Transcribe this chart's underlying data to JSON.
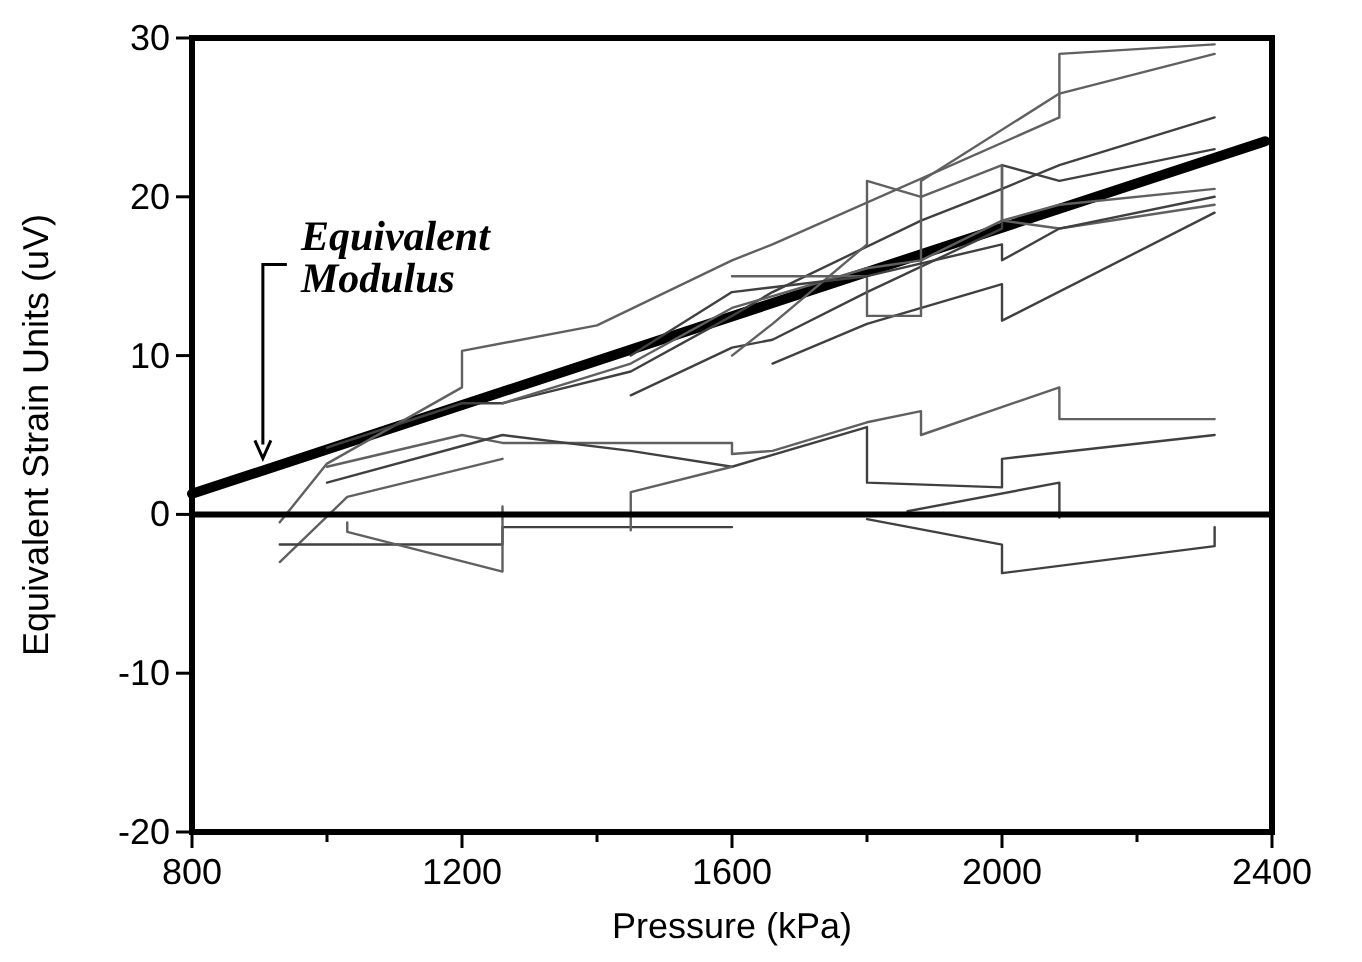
{
  "chart_data": {
    "type": "line",
    "xlabel": "Pressure (kPa)",
    "ylabel": "Equivalent Strain Units (uV)",
    "xlim": [
      800,
      2400
    ],
    "ylim": [
      -20,
      30
    ],
    "xticks": [
      800,
      {
        "value": 1000,
        "label": null
      },
      1200,
      {
        "value": 1400,
        "label": null
      },
      1600,
      {
        "value": 1800,
        "label": null
      },
      2000,
      {
        "value": 2200,
        "label": null
      },
      2400
    ],
    "yticks": [
      -20,
      -10,
      0,
      10,
      20,
      30
    ],
    "grid": false,
    "marker": "none",
    "line_style": "solid",
    "ref_lines": [
      {
        "axis": "y",
        "value": 0,
        "color": "#000000"
      }
    ],
    "annotations": [
      {
        "text": "Equivalent Modulus",
        "x": 905,
        "y": 3.4
      }
    ],
    "series": [
      {
        "color": "#000000",
        "x": [
          800,
          2390
        ],
        "values": [
          1.3,
          23.5
        ]
      },
      {
        "color": "#606060",
        "x": [
          930,
          1000,
          1200,
          1200,
          1400,
          1600,
          1660,
          2085,
          2085,
          2315
        ],
        "values": [
          -0.5,
          3.2,
          8,
          10.3,
          11.9,
          16,
          17,
          25,
          29,
          29.6
        ]
      },
      {
        "color": "#404040",
        "x": [
          1000,
          1200,
          1260,
          1450,
          1600,
          1660,
          1880,
          2000,
          2085,
          2315
        ],
        "values": [
          4.2,
          7,
          7,
          9,
          12.5,
          14,
          18.5,
          20.5,
          22,
          25
        ]
      },
      {
        "color": "#606060",
        "x": [
          1260,
          1450,
          1600,
          1800,
          1880,
          2000,
          2085,
          2315
        ],
        "values": [
          7,
          9.5,
          13,
          15.5,
          16,
          18.5,
          19.5,
          20.5
        ]
      },
      {
        "color": "#404040",
        "x": [
          1450,
          1600,
          1660,
          1800,
          2000,
          2000,
          2085,
          2315
        ],
        "values": [
          7.5,
          10.5,
          11,
          14,
          18,
          22,
          21,
          23
        ]
      },
      {
        "color": "#606060",
        "x": [
          1600,
          1660,
          1800,
          1800,
          1880,
          2000,
          2000,
          2085,
          2315
        ],
        "values": [
          10,
          12,
          17,
          21,
          20,
          22,
          18.5,
          18,
          19.5
        ]
      },
      {
        "color": "#404040",
        "x": [
          1660,
          1800,
          2000,
          2000,
          2315
        ],
        "values": [
          9.5,
          12,
          14.5,
          12.2,
          19
        ]
      },
      {
        "color": "#606060",
        "x": [
          1600,
          1800,
          1800,
          1880,
          1880,
          2085,
          2315
        ],
        "values": [
          15,
          15,
          12.5,
          12.5,
          21,
          26.5,
          29
        ]
      },
      {
        "color": "#404040",
        "x": [
          1450,
          1600,
          1800,
          2000,
          2000,
          2085,
          2315
        ],
        "values": [
          10,
          14,
          15,
          17,
          16,
          18,
          20
        ]
      },
      {
        "color": "#606060",
        "x": [
          1000,
          1200,
          1260,
          1450,
          1600,
          1600,
          1660,
          1800,
          1880,
          1880,
          2085,
          2085,
          2315
        ],
        "values": [
          3,
          5,
          4.5,
          4.5,
          4.5,
          3.8,
          4,
          5.8,
          6.5,
          5,
          8,
          6,
          6
        ]
      },
      {
        "color": "#404040",
        "x": [
          1000,
          1260,
          1450,
          1600,
          1800,
          1800,
          2000,
          2000,
          2315
        ],
        "values": [
          2,
          5,
          4,
          3,
          5.5,
          2,
          1.7,
          3.5,
          5
        ]
      },
      {
        "color": "#606060",
        "x": [
          930,
          1030,
          1260
        ],
        "values": [
          -3,
          1.1,
          3.5
        ]
      },
      {
        "color": "#404040",
        "x": [
          930,
          1260,
          1260,
          1600
        ],
        "values": [
          -1.9,
          -1.9,
          -0.8,
          -0.8
        ]
      },
      {
        "color": "#606060",
        "x": [
          1030,
          1030,
          1260,
          1260
        ],
        "values": [
          -0.5,
          -1.1,
          -3.6,
          0.5
        ]
      },
      {
        "color": "#404040",
        "x": [
          1800,
          2000,
          2000,
          2315,
          2315
        ],
        "values": [
          -0.3,
          -1.9,
          -3.7,
          -2,
          -0.8
        ]
      },
      {
        "color": "#606060",
        "x": [
          1450,
          1450,
          1600
        ],
        "values": [
          -1,
          1.4,
          3
        ]
      },
      {
        "color": "#404040",
        "x": [
          1860,
          2085,
          2085
        ],
        "values": [
          0.2,
          2,
          -0.2
        ]
      }
    ]
  }
}
